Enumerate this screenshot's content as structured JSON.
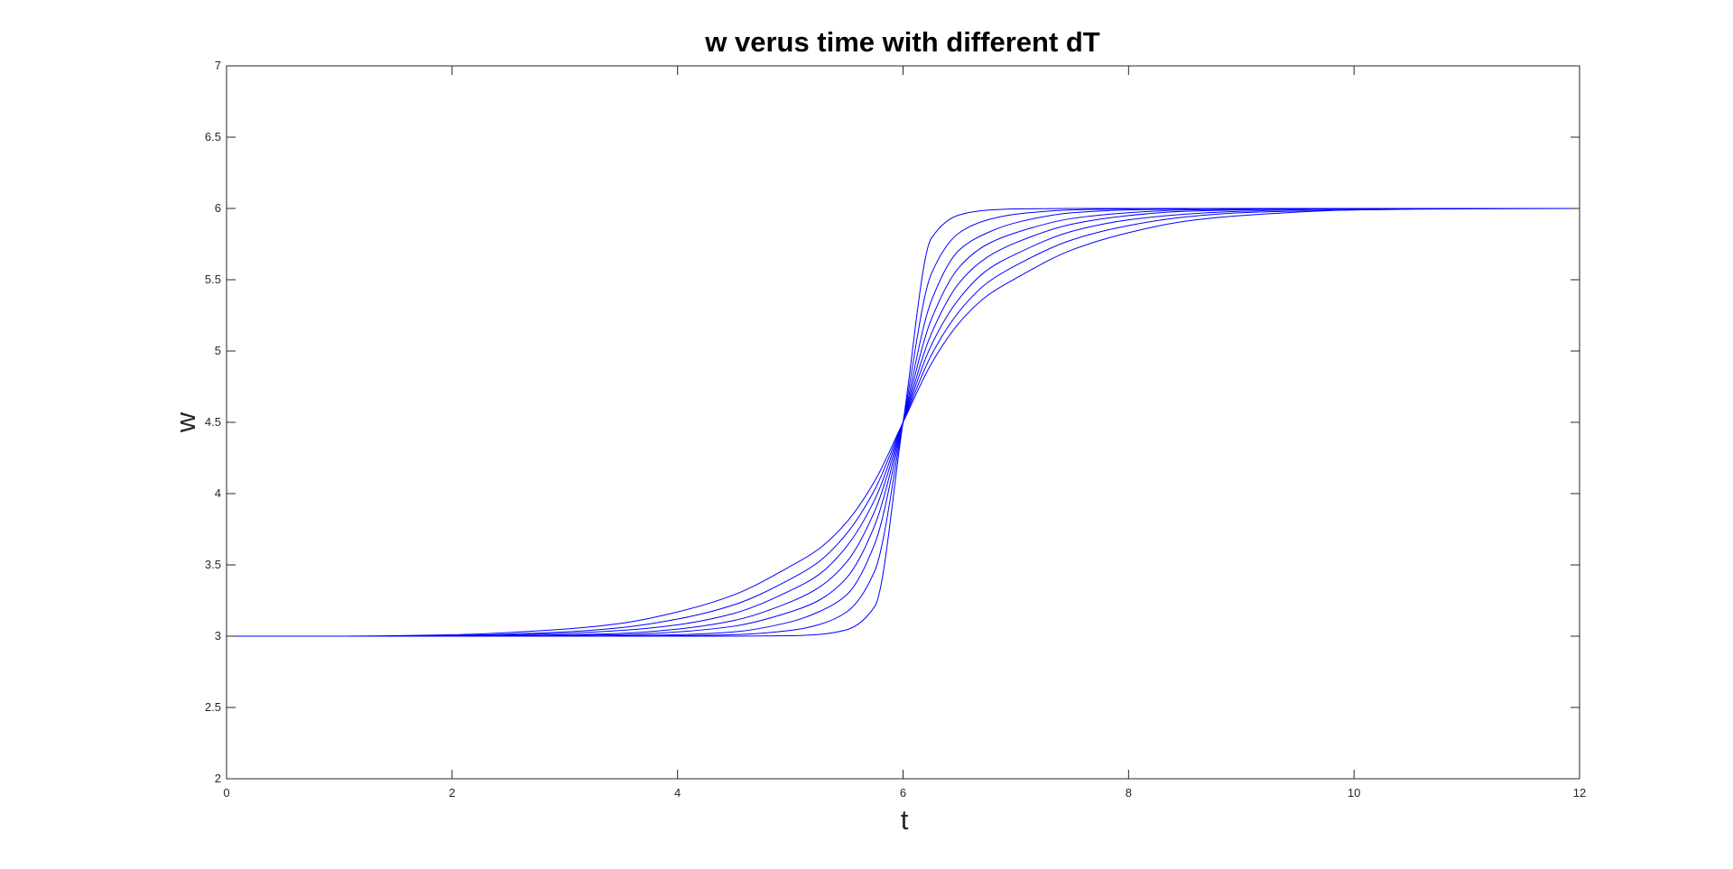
{
  "chart_data": {
    "type": "line",
    "title": "w verus time with different dT",
    "xlabel": "t",
    "ylabel": "w",
    "xlim": [
      0,
      12
    ],
    "ylim": [
      2,
      7
    ],
    "xticks": [
      0,
      2,
      4,
      6,
      8,
      10,
      12
    ],
    "xtick_labels": [
      "0",
      "2",
      "4",
      "6",
      "8",
      "10",
      "12"
    ],
    "yticks": [
      2,
      2.5,
      3,
      3.5,
      4,
      4.5,
      5,
      5.5,
      6,
      6.5,
      7
    ],
    "ytick_labels": [
      "2",
      "2.5",
      "3",
      "3.5",
      "4",
      "4.5",
      "5",
      "5.5",
      "6",
      "6.5",
      "7"
    ],
    "grid": false,
    "legend": "none",
    "line_color": "#0000ff",
    "axes_color": "#262626",
    "x": [
      0,
      1,
      2,
      3,
      3.5,
      4,
      4.5,
      5,
      5.25,
      5.5,
      5.75,
      6,
      6.25,
      6.5,
      6.75,
      7,
      7.5,
      8,
      8.5,
      9,
      10,
      11,
      12
    ],
    "series": [
      {
        "values": [
          3.0,
          3.0,
          3.0,
          3.0,
          3.0,
          3.0,
          3.0,
          3.003,
          3.012,
          3.045,
          3.21,
          4.5,
          5.79,
          5.955,
          5.988,
          5.997,
          6.0,
          6.0,
          6.0,
          6.0,
          6.0,
          6.0,
          6.0
        ]
      },
      {
        "values": [
          3.0,
          3.0,
          3.0,
          3.0,
          3.0,
          3.003,
          3.01,
          3.04,
          3.08,
          3.17,
          3.46,
          4.5,
          5.54,
          5.83,
          5.92,
          5.96,
          5.99,
          5.997,
          6.0,
          6.0,
          6.0,
          6.0,
          6.0
        ]
      },
      {
        "values": [
          3.0,
          3.0,
          3.0,
          3.0,
          3.003,
          3.01,
          3.03,
          3.1,
          3.17,
          3.29,
          3.65,
          4.5,
          5.35,
          5.71,
          5.83,
          5.9,
          5.97,
          5.99,
          5.997,
          6.0,
          6.0,
          6.0,
          6.0
        ]
      },
      {
        "values": [
          3.0,
          3.0,
          3.0,
          3.005,
          3.01,
          3.03,
          3.07,
          3.17,
          3.25,
          3.41,
          3.78,
          4.5,
          5.22,
          5.59,
          5.75,
          5.83,
          5.93,
          5.97,
          5.99,
          5.995,
          6.0,
          6.0,
          6.0
        ]
      },
      {
        "values": [
          3.0,
          3.0,
          3.0,
          3.01,
          3.02,
          3.05,
          3.11,
          3.24,
          3.34,
          3.52,
          3.88,
          4.5,
          5.12,
          5.48,
          5.66,
          5.76,
          5.89,
          5.95,
          5.98,
          5.99,
          6.0,
          6.0,
          6.0
        ]
      },
      {
        "values": [
          3.0,
          3.0,
          3.003,
          3.02,
          3.04,
          3.08,
          3.16,
          3.32,
          3.43,
          3.63,
          3.96,
          4.5,
          5.04,
          5.37,
          5.57,
          5.68,
          5.84,
          5.92,
          5.96,
          5.98,
          5.996,
          6.0,
          6.0
        ]
      },
      {
        "values": [
          3.0,
          3.0,
          3.005,
          3.03,
          3.06,
          3.12,
          3.22,
          3.4,
          3.52,
          3.72,
          4.03,
          4.5,
          4.97,
          5.28,
          5.48,
          5.6,
          5.78,
          5.88,
          5.94,
          5.97,
          5.99,
          6.0,
          6.0
        ]
      },
      {
        "values": [
          3.0,
          3.0,
          3.01,
          3.05,
          3.09,
          3.17,
          3.29,
          3.49,
          3.61,
          3.8,
          4.09,
          4.5,
          4.91,
          5.2,
          5.39,
          5.51,
          5.71,
          5.83,
          5.91,
          5.95,
          5.99,
          5.997,
          6.0
        ]
      }
    ]
  }
}
